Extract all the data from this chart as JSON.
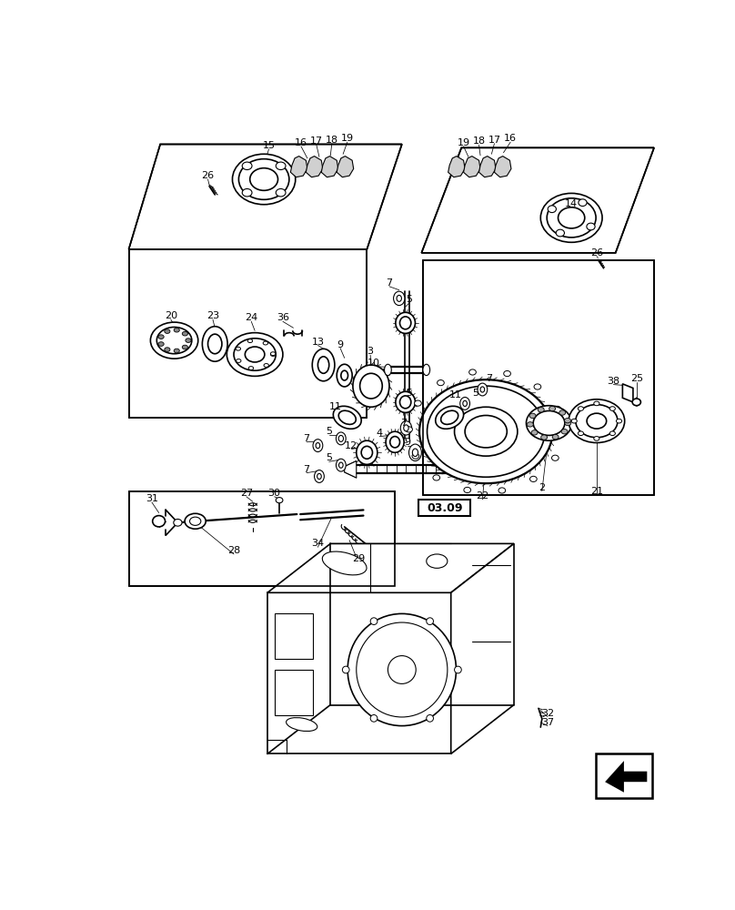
{
  "background_color": "#ffffff",
  "figsize": [
    8.08,
    10.0
  ],
  "dpi": 100
}
